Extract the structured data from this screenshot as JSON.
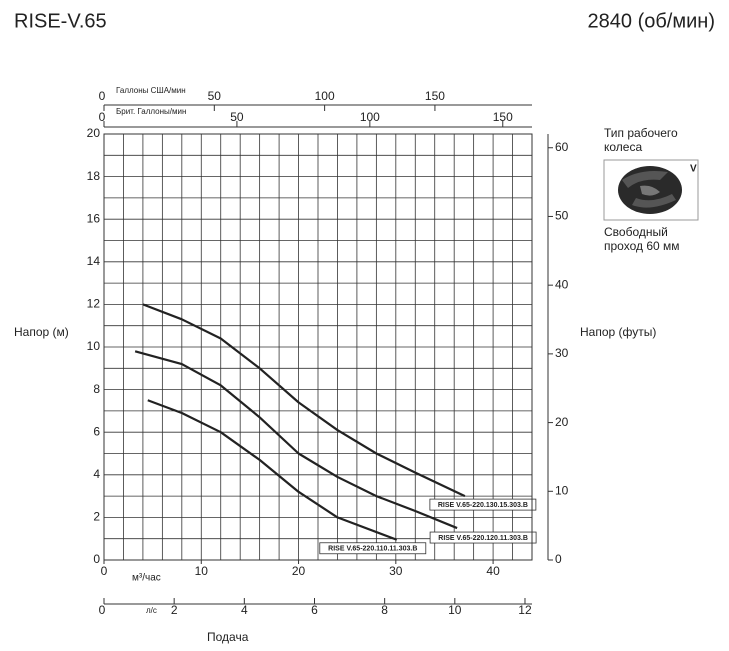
{
  "chart_data": {
    "type": "line",
    "title": "RISE-V.65",
    "subtitle": "2840 (об/мин)",
    "x_label": "м³/час",
    "xlim": [
      0,
      44
    ],
    "xticks": [
      0,
      10,
      20,
      30,
      40
    ],
    "xgrid": [
      0,
      2,
      4,
      6,
      8,
      10,
      12,
      14,
      16,
      18,
      20,
      22,
      24,
      26,
      28,
      30,
      32,
      34,
      36,
      38,
      40,
      42,
      44
    ],
    "y_label": "Напор (м)",
    "ylim": [
      0,
      20
    ],
    "yticks": [
      0,
      2,
      4,
      6,
      8,
      10,
      12,
      14,
      16,
      18,
      20
    ],
    "ygrid": [
      0,
      1,
      2,
      3,
      4,
      5,
      6,
      7,
      8,
      9,
      10,
      11,
      12,
      13,
      14,
      15,
      16,
      17,
      18,
      19,
      20
    ],
    "y2_label": "Напор (футы)",
    "y2lim": [
      0,
      62
    ],
    "y2ticks": [
      0,
      10,
      20,
      30,
      40,
      50,
      60
    ],
    "grid": true,
    "extra_x_axes": [
      {
        "label": "Галлоны США/мин",
        "xlim": [
          0,
          194
        ],
        "xticks": [
          0,
          50,
          100,
          150
        ]
      },
      {
        "label": "Брит. Галлоны/мин",
        "xlim": [
          0,
          161
        ],
        "xticks": [
          0,
          50,
          100,
          150
        ]
      },
      {
        "label": "л/с",
        "xlim": [
          0,
          12.2
        ],
        "xticks": [
          0,
          2,
          4,
          6,
          8,
          10,
          12
        ]
      }
    ],
    "x_title": "Подача",
    "series": [
      {
        "name": "RISE V.65-220.130.15.303.B",
        "color": "#222222",
        "x": [
          4,
          8,
          12,
          16,
          20,
          24,
          28,
          32,
          37.1
        ],
        "values": [
          12.0,
          11.3,
          10.4,
          9.0,
          7.4,
          6.1,
          5.0,
          4.1,
          3.0
        ]
      },
      {
        "name": "RISE V.65-220.120.11.303.B",
        "color": "#222222",
        "x": [
          3.2,
          8,
          12,
          16,
          20,
          24,
          28,
          32,
          36.3
        ],
        "values": [
          9.8,
          9.2,
          8.2,
          6.7,
          5.0,
          3.9,
          3.0,
          2.3,
          1.5
        ]
      },
      {
        "name": "RISE V.65-220.110.11.303.B",
        "color": "#222222",
        "x": [
          4.5,
          8,
          12,
          16,
          20,
          24,
          30.1
        ],
        "values": [
          7.5,
          6.9,
          6.0,
          4.7,
          3.2,
          2.0,
          0.95
        ]
      }
    ]
  },
  "impeller": {
    "title": "Тип рабочего колеса",
    "type_label": "V",
    "passage": "Свободный проход 60 мм"
  }
}
